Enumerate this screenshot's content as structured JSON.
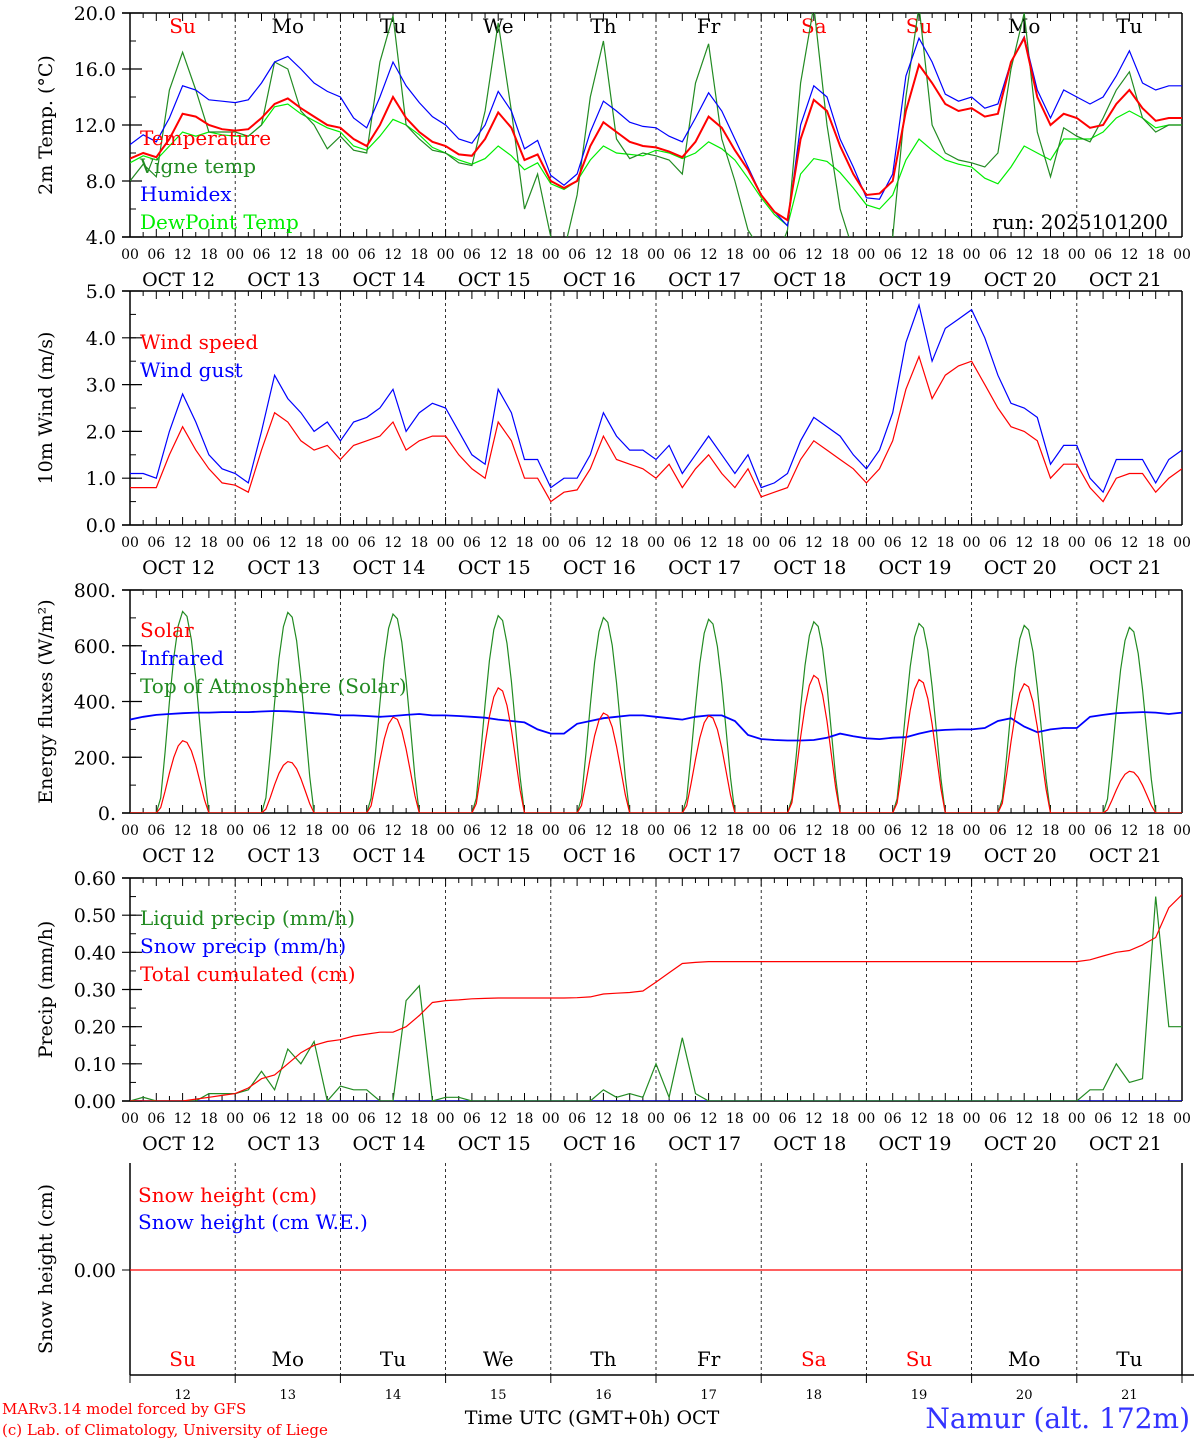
{
  "colors": {
    "temperature": "#ff0000",
    "vigne": "#228b22",
    "humidex": "#0000ff",
    "dewpoint": "#00ee00",
    "wind_speed": "#ff0000",
    "wind_gust": "#0000ff",
    "solar": "#ff0000",
    "infrared": "#0000ff",
    "toa": "#228b22",
    "liquid": "#228b22",
    "snow": "#0000ff",
    "cumul": "#ff0000",
    "snow_height": "#ff0000",
    "weekend": "#ff0000",
    "location": "#3333ff"
  },
  "days": [
    {
      "date": "OCT 12",
      "num": "12",
      "name": "Su",
      "weekend": true
    },
    {
      "date": "OCT 13",
      "num": "13",
      "name": "Mo",
      "weekend": false
    },
    {
      "date": "OCT 14",
      "num": "14",
      "name": "Tu",
      "weekend": false
    },
    {
      "date": "OCT 15",
      "num": "15",
      "name": "We",
      "weekend": false
    },
    {
      "date": "OCT 16",
      "num": "16",
      "name": "Th",
      "weekend": false
    },
    {
      "date": "OCT 17",
      "num": "17",
      "name": "Fr",
      "weekend": false
    },
    {
      "date": "OCT 18",
      "num": "18",
      "name": "Sa",
      "weekend": true
    },
    {
      "date": "OCT 19",
      "num": "19",
      "name": "Su",
      "weekend": true
    },
    {
      "date": "OCT 20",
      "num": "20",
      "name": "Mo",
      "weekend": false
    },
    {
      "date": "OCT 21",
      "num": "21",
      "name": "Tu",
      "weekend": false
    }
  ],
  "hour_labels": [
    "00",
    "06",
    "12",
    "18"
  ],
  "run_label": "run: 2025101200",
  "footer": {
    "model": "MARv3.14 model forced by GFS",
    "credit": "(c) Lab. of Climatology, University of Liege",
    "xlabel": "Time UTC (GMT+0h) OCT",
    "location": "Namur (alt. 172m)"
  },
  "chart_data": [
    {
      "type": "line",
      "id": "temp",
      "ylabel": "2m Temp. (°C)",
      "ylim": [
        4,
        20
      ],
      "yticks": [
        "4.0",
        "8.0",
        "12.0",
        "16.0",
        "20.0"
      ],
      "x_step_hours": 3,
      "legend": [
        "Temperature",
        "Vigne temp",
        "Humidex",
        "DewPoint Temp"
      ],
      "series": [
        {
          "name": "Temperature",
          "color_key": "temperature",
          "values": [
            9.6,
            10,
            9.7,
            11,
            12.8,
            12.6,
            12,
            11.7,
            11.6,
            11.7,
            12.5,
            13.5,
            13.9,
            13.2,
            12.6,
            12,
            11.8,
            11,
            10.5,
            12,
            14,
            12.5,
            11.5,
            10.8,
            10.5,
            9.9,
            9.8,
            11,
            12.9,
            11.8,
            9.5,
            9.9,
            8,
            7.5,
            8,
            10.5,
            12.2,
            11.5,
            10.8,
            10.5,
            10.4,
            10.1,
            9.7,
            10.8,
            12.6,
            11.8,
            10.2,
            8.8,
            7,
            5.8,
            5.2,
            11,
            13.8,
            13,
            10.5,
            8.5,
            7,
            7.1,
            8,
            13,
            16.3,
            15,
            13.5,
            13,
            13.2,
            12.6,
            12.8,
            16.5,
            18.2,
            14,
            12,
            12.8,
            12.5,
            11.8,
            12,
            13.5,
            14.5,
            13.2,
            12.3,
            12.5,
            12.5
          ]
        },
        {
          "name": "Vigne temp",
          "color_key": "vigne",
          "values": [
            8,
            9.2,
            8.3,
            14.5,
            17.2,
            14.5,
            11.5,
            11.5,
            11.5,
            11.2,
            12,
            16.5,
            16,
            13,
            12,
            10.3,
            11.2,
            10.2,
            10,
            16.5,
            19.8,
            12,
            11,
            10.2,
            10,
            9.3,
            9.1,
            13,
            19.3,
            13,
            6,
            8.5,
            4,
            3,
            7,
            14,
            18,
            11,
            9.6,
            10,
            9.8,
            9.5,
            8.5,
            15,
            17.8,
            11,
            8,
            4.5,
            3,
            2,
            4.5,
            15,
            20.5,
            12,
            6,
            3,
            2,
            3,
            4,
            14,
            20.5,
            12,
            10,
            9.5,
            9.3,
            9,
            10,
            16,
            20,
            11.5,
            8.3,
            11.8,
            11.2,
            10.8,
            12.5,
            14.5,
            15.8,
            12.5,
            11.5,
            12,
            12
          ]
        },
        {
          "name": "Humidex",
          "color_key": "humidex",
          "values": [
            10.6,
            11.3,
            10.8,
            12.5,
            14.8,
            14.5,
            13.8,
            13.7,
            13.6,
            13.8,
            15,
            16.5,
            16.9,
            16,
            15,
            14.4,
            14,
            12.5,
            11.8,
            14,
            16.5,
            14.8,
            13.6,
            12.6,
            12,
            11,
            10.7,
            12,
            14.4,
            13,
            10.3,
            10.9,
            8.4,
            7.7,
            8.5,
            11.5,
            13.7,
            13,
            12.2,
            11.9,
            11.8,
            11.2,
            10.8,
            12.5,
            14.3,
            13,
            11,
            9,
            7,
            5.8,
            4.8,
            12,
            14.8,
            14,
            11,
            9,
            6.8,
            6.7,
            8.5,
            15.5,
            18.2,
            16.5,
            14.2,
            13.7,
            14,
            13.2,
            13.5,
            16.5,
            18.3,
            14.5,
            12.5,
            14.5,
            14,
            13.5,
            14,
            15.5,
            17.3,
            15,
            14.5,
            14.8,
            14.8
          ]
        },
        {
          "name": "DewPoint Temp",
          "color_key": "dewpoint",
          "values": [
            9.3,
            9.8,
            9.5,
            10.5,
            11.5,
            11.2,
            11.5,
            11.3,
            11.2,
            11.2,
            12,
            13.3,
            13.5,
            12.8,
            12.3,
            11.8,
            11.5,
            10.5,
            10.2,
            11.2,
            12.4,
            12,
            11.3,
            10.4,
            10,
            9.5,
            9.2,
            9.6,
            10.5,
            9.8,
            8.8,
            9.3,
            7.8,
            7.4,
            8,
            9.5,
            10.5,
            10,
            9.9,
            9.8,
            10.2,
            10,
            9.6,
            10,
            10.8,
            10.3,
            9.5,
            8.2,
            6.8,
            5.6,
            4.8,
            8.5,
            9.6,
            9.4,
            8.6,
            7.5,
            6.3,
            6,
            7,
            9.5,
            11,
            10.2,
            9.5,
            9.2,
            9,
            8.2,
            7.8,
            9,
            10.5,
            10,
            9.5,
            11,
            11,
            11,
            11.5,
            12.5,
            13,
            12.5,
            11.8,
            12,
            12
          ]
        }
      ]
    },
    {
      "type": "line",
      "id": "wind",
      "ylabel": "10m Wind (m/s)",
      "ylim": [
        0,
        5
      ],
      "yticks": [
        "0.0",
        "1.0",
        "2.0",
        "3.0",
        "4.0",
        "5.0"
      ],
      "x_step_hours": 3,
      "legend": [
        "Wind speed",
        "Wind gust"
      ],
      "series": [
        {
          "name": "Wind speed",
          "color_key": "wind_speed",
          "values": [
            0.8,
            0.8,
            0.8,
            1.5,
            2.1,
            1.6,
            1.2,
            0.9,
            0.85,
            0.7,
            1.6,
            2.4,
            2.2,
            1.8,
            1.6,
            1.7,
            1.4,
            1.7,
            1.8,
            1.9,
            2.2,
            1.6,
            1.8,
            1.9,
            1.9,
            1.5,
            1.2,
            1,
            2.2,
            1.8,
            1,
            1,
            0.5,
            0.7,
            0.75,
            1.2,
            1.9,
            1.4,
            1.3,
            1.2,
            1,
            1.3,
            0.8,
            1.2,
            1.5,
            1.1,
            0.8,
            1.2,
            0.6,
            0.7,
            0.8,
            1.4,
            1.8,
            1.6,
            1.4,
            1.2,
            0.9,
            1.2,
            1.8,
            2.9,
            3.6,
            2.7,
            3.2,
            3.4,
            3.5,
            3,
            2.5,
            2.1,
            2,
            1.8,
            1,
            1.3,
            1.3,
            0.8,
            0.5,
            1,
            1.1,
            1.1,
            0.7,
            1,
            1.2
          ]
        },
        {
          "name": "Wind gust",
          "color_key": "wind_gust",
          "values": [
            1.1,
            1.1,
            1,
            2,
            2.8,
            2.2,
            1.5,
            1.2,
            1.1,
            0.9,
            2,
            3.2,
            2.7,
            2.4,
            2,
            2.2,
            1.8,
            2.2,
            2.3,
            2.5,
            2.9,
            2,
            2.4,
            2.6,
            2.5,
            2,
            1.5,
            1.3,
            2.9,
            2.4,
            1.4,
            1.4,
            0.8,
            1,
            1,
            1.5,
            2.4,
            1.9,
            1.6,
            1.6,
            1.4,
            1.7,
            1.1,
            1.5,
            1.9,
            1.5,
            1.1,
            1.5,
            0.8,
            0.9,
            1.1,
            1.8,
            2.3,
            2.1,
            1.9,
            1.5,
            1.2,
            1.6,
            2.4,
            3.9,
            4.7,
            3.5,
            4.2,
            4.4,
            4.6,
            4,
            3.2,
            2.6,
            2.5,
            2.3,
            1.3,
            1.7,
            1.7,
            1,
            0.7,
            1.4,
            1.4,
            1.4,
            0.9,
            1.4,
            1.6
          ]
        }
      ]
    },
    {
      "type": "line",
      "id": "flux",
      "ylabel": "Energy fluxes (W/m²)",
      "ylim": [
        0,
        800
      ],
      "yticks": [
        "0.",
        "200.",
        "400.",
        "600.",
        "800."
      ],
      "legend": [
        "Solar",
        "Infrared",
        "Top of Atmosphere (Solar)"
      ],
      "toa_daily_peak": [
        725,
        722,
        716,
        710,
        703,
        697,
        688,
        682,
        675,
        668
      ],
      "solar_daily_peak": [
        260,
        185,
        345,
        450,
        360,
        350,
        495,
        480,
        465,
        150
      ],
      "infrared_3h": [
        335,
        345,
        352,
        355,
        358,
        360,
        360,
        362,
        362,
        362,
        364,
        366,
        365,
        362,
        358,
        355,
        350,
        350,
        348,
        345,
        348,
        352,
        355,
        350,
        350,
        348,
        345,
        342,
        335,
        330,
        325,
        300,
        285,
        285,
        320,
        330,
        340,
        345,
        350,
        350,
        345,
        340,
        335,
        345,
        350,
        350,
        330,
        280,
        265,
        262,
        260,
        260,
        262,
        270,
        285,
        275,
        268,
        265,
        270,
        272,
        285,
        295,
        298,
        300,
        300,
        305,
        330,
        340,
        310,
        290,
        300,
        305,
        305,
        345,
        352,
        358,
        360,
        362,
        360,
        355,
        360
      ]
    },
    {
      "type": "line",
      "id": "precip",
      "ylabel": "Precip (mm/h)",
      "ylim": [
        0,
        0.6
      ],
      "yticks": [
        "0.00",
        "0.10",
        "0.20",
        "0.30",
        "0.40",
        "0.50",
        "0.60"
      ],
      "x_step_hours": 3,
      "legend": [
        "Liquid precip (mm/h)",
        "Snow precip (mm/h)",
        "Total cumulated (cm)"
      ],
      "series": [
        {
          "name": "Liquid precip (mm/h)",
          "color_key": "liquid",
          "values": [
            0,
            0.01,
            0,
            0,
            0,
            0,
            0.02,
            0.02,
            0.02,
            0.03,
            0.08,
            0.03,
            0.14,
            0.1,
            0.16,
            0,
            0.04,
            0.03,
            0.03,
            0,
            0,
            0.27,
            0.31,
            0,
            0.01,
            0.01,
            0,
            0,
            0,
            0,
            0,
            0,
            0,
            0,
            0,
            0,
            0.03,
            0.01,
            0.02,
            0.01,
            0.1,
            0.01,
            0.17,
            0.02,
            0,
            0,
            0,
            0,
            0,
            0,
            0,
            0,
            0,
            0,
            0,
            0,
            0,
            0,
            0,
            0,
            0,
            0,
            0,
            0,
            0,
            0,
            0,
            0,
            0,
            0,
            0,
            0,
            0,
            0.03,
            0.03,
            0.1,
            0.05,
            0.06,
            0.55,
            0.2,
            0.2
          ]
        },
        {
          "name": "Snow precip (mm/h)",
          "color_key": "snow",
          "values": [
            0
          ]
        },
        {
          "name": "Total cumulated (cm)",
          "color_key": "cumul",
          "values": [
            0,
            0,
            0,
            0,
            0,
            0.005,
            0.01,
            0.015,
            0.02,
            0.035,
            0.06,
            0.07,
            0.1,
            0.13,
            0.15,
            0.16,
            0.165,
            0.175,
            0.18,
            0.185,
            0.185,
            0.2,
            0.23,
            0.265,
            0.27,
            0.272,
            0.275,
            0.276,
            0.277,
            0.277,
            0.277,
            0.277,
            0.277,
            0.277,
            0.278,
            0.28,
            0.288,
            0.29,
            0.292,
            0.296,
            0.32,
            0.345,
            0.37,
            0.373,
            0.375,
            0.375,
            0.375,
            0.375,
            0.375,
            0.375,
            0.375,
            0.375,
            0.375,
            0.375,
            0.375,
            0.375,
            0.375,
            0.375,
            0.375,
            0.375,
            0.375,
            0.375,
            0.375,
            0.375,
            0.375,
            0.375,
            0.375,
            0.375,
            0.375,
            0.375,
            0.375,
            0.375,
            0.375,
            0.38,
            0.39,
            0.4,
            0.405,
            0.42,
            0.44,
            0.52,
            0.555
          ]
        }
      ]
    },
    {
      "type": "line",
      "id": "snow",
      "ylabel": "Snow height (cm)",
      "yticks": [
        "0.00"
      ],
      "legend": [
        "Snow height (cm)",
        "Snow height (cm W.E.)"
      ],
      "series": [
        {
          "name": "Snow height (cm)",
          "color_key": "snow_height",
          "values": [
            0
          ]
        }
      ]
    }
  ]
}
